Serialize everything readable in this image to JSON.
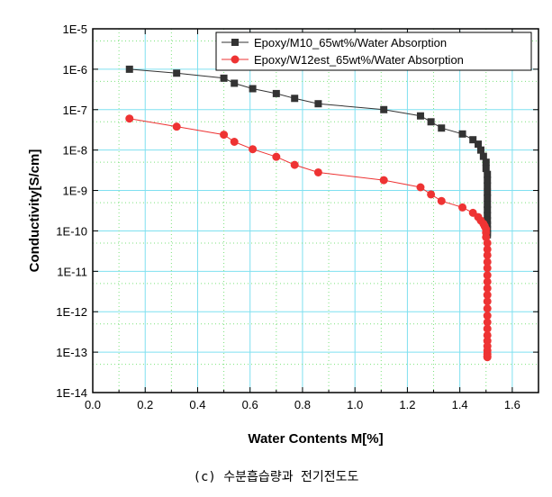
{
  "chart_data": {
    "type": "scatter",
    "xlabel": "Water Contents M[%]",
    "ylabel": "Conductivity[S/cm]",
    "xlim": [
      0.0,
      1.7
    ],
    "ylim": [
      1e-14,
      1e-05
    ],
    "yscale": "log",
    "xticks": [
      "0.0",
      "0.2",
      "0.4",
      "0.6",
      "0.8",
      "1.0",
      "1.2",
      "1.4",
      "1.6"
    ],
    "yticks": [
      "1E-5",
      "1E-6",
      "1E-7",
      "1E-8",
      "1E-9",
      "1E-10",
      "1E-11",
      "1E-12",
      "1E-13",
      "1E-14"
    ],
    "grid": true,
    "legend_position": "top-right",
    "series": [
      {
        "name": "Epoxy/M10_65wt%/Water Absorption",
        "color": "#333333",
        "marker": "square",
        "x": [
          0.14,
          0.32,
          0.5,
          0.54,
          0.61,
          0.7,
          0.77,
          0.86,
          1.11,
          1.25,
          1.29,
          1.33,
          1.41,
          1.45,
          1.47,
          1.48,
          1.49,
          1.5,
          1.5,
          1.505,
          1.505,
          1.505,
          1.505,
          1.505,
          1.505,
          1.505,
          1.505,
          1.505,
          1.505,
          1.505,
          1.505,
          1.505
        ],
        "y": [
          1e-06,
          8e-07,
          6e-07,
          4.5e-07,
          3.3e-07,
          2.5e-07,
          1.9e-07,
          1.4e-07,
          1e-07,
          7e-08,
          5e-08,
          3.5e-08,
          2.5e-08,
          1.8e-08,
          1.4e-08,
          1e-08,
          7e-09,
          5e-09,
          3.5e-09,
          2.5e-09,
          1.8e-09,
          1.3e-09,
          9e-10,
          6.5e-10,
          4.5e-10,
          3.3e-10,
          2.4e-10,
          1.8e-10,
          1.4e-10,
          1.1e-10,
          9e-11,
          8e-11
        ]
      },
      {
        "name": "Epoxy/W12est_65wt%/Water Absorption",
        "color": "#ee3333",
        "marker": "circle",
        "x": [
          0.14,
          0.32,
          0.5,
          0.54,
          0.61,
          0.7,
          0.77,
          0.86,
          1.11,
          1.25,
          1.29,
          1.33,
          1.41,
          1.45,
          1.47,
          1.48,
          1.49,
          1.495,
          1.5,
          1.5,
          1.5,
          1.505,
          1.505,
          1.505,
          1.505,
          1.505,
          1.505,
          1.505,
          1.505,
          1.505,
          1.505,
          1.505,
          1.505,
          1.505,
          1.505,
          1.505,
          1.505,
          1.505,
          1.505,
          1.505,
          1.505,
          1.505
        ],
        "y": [
          6e-08,
          3.8e-08,
          2.4e-08,
          1.6e-08,
          1.05e-08,
          6.8e-09,
          4.3e-09,
          2.8e-09,
          1.8e-09,
          1.2e-09,
          8e-10,
          5.5e-10,
          3.8e-10,
          2.8e-10,
          2.2e-10,
          1.8e-10,
          1.5e-10,
          1.3e-10,
          1.1e-10,
          9e-11,
          7e-11,
          5e-11,
          3.5e-11,
          2.5e-11,
          1.7e-11,
          1.2e-11,
          8e-12,
          5.5e-12,
          3.8e-12,
          2.6e-12,
          1.8e-12,
          1.2e-12,
          8e-13,
          5.5e-13,
          3.8e-13,
          2.6e-13,
          1.9e-13,
          1.4e-13,
          1.1e-13,
          9e-14,
          8e-14,
          7.5e-14
        ]
      }
    ]
  },
  "caption": "(c) 수분흡습량과 전기전도도"
}
